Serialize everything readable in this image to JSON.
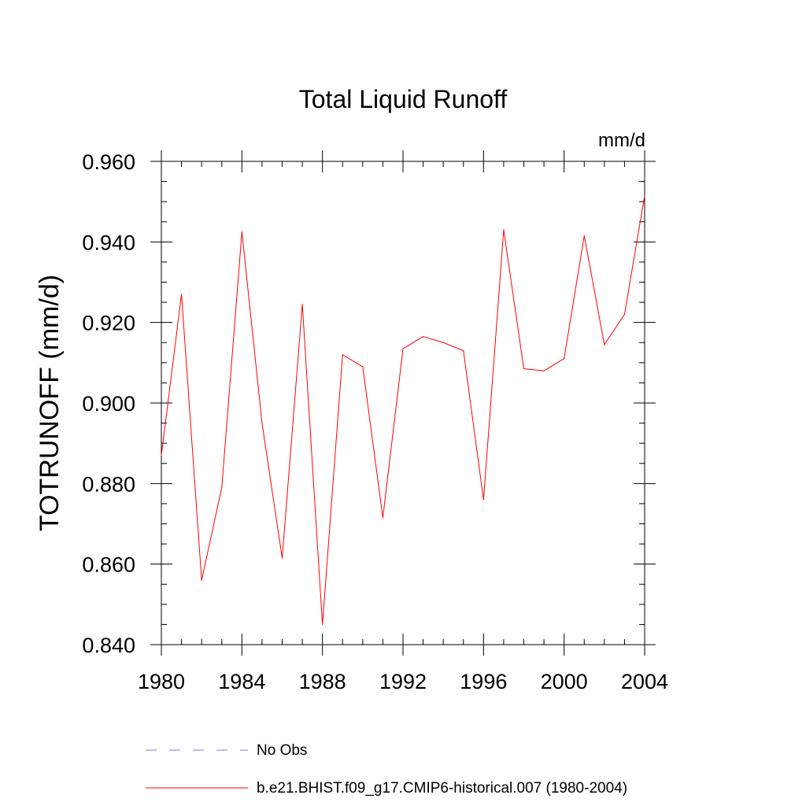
{
  "chart_data": {
    "type": "line",
    "title": "Total Liquid Runoff",
    "units": "mm/d",
    "ylabel": "TOTRUNOFF  (mm/d)",
    "xlabel": "",
    "xlim": [
      1980,
      2004
    ],
    "ylim": [
      0.84,
      0.96
    ],
    "x_ticks": [
      1980,
      1984,
      1988,
      1992,
      1996,
      2000,
      2004
    ],
    "y_ticks": [
      "0.840",
      "0.860",
      "0.880",
      "0.900",
      "0.920",
      "0.940",
      "0.960"
    ],
    "y_tick_values": [
      0.84,
      0.86,
      0.88,
      0.9,
      0.92,
      0.94,
      0.96
    ],
    "x_minor_step": 1,
    "y_minor_step": 0.005,
    "grid": false,
    "legend_position": "bottom",
    "series": [
      {
        "name": "b.e21.BHIST.f09_g17.CMIP6-historical.007 (1980-2004)",
        "color": "#ff0000",
        "style": "solid",
        "x": [
          1980,
          1981,
          1982,
          1983,
          1984,
          1985,
          1986,
          1987,
          1988,
          1989,
          1990,
          1991,
          1992,
          1993,
          1994,
          1995,
          1996,
          1997,
          1998,
          1999,
          2000,
          2001,
          2002,
          2003,
          2004
        ],
        "values": [
          0.887,
          0.927,
          0.856,
          0.879,
          0.9425,
          0.895,
          0.8615,
          0.9245,
          0.845,
          0.912,
          0.909,
          0.8715,
          0.9135,
          0.9165,
          0.915,
          0.913,
          0.876,
          0.943,
          0.9085,
          0.908,
          0.911,
          0.9415,
          0.9145,
          0.922,
          0.9515
        ]
      }
    ],
    "legend": [
      {
        "label": "No Obs",
        "color": "#7b7bd6",
        "style": "dashed"
      },
      {
        "label": "b.e21.BHIST.f09_g17.CMIP6-historical.007 (1980-2004)",
        "color": "#ff0000",
        "style": "solid"
      }
    ]
  }
}
